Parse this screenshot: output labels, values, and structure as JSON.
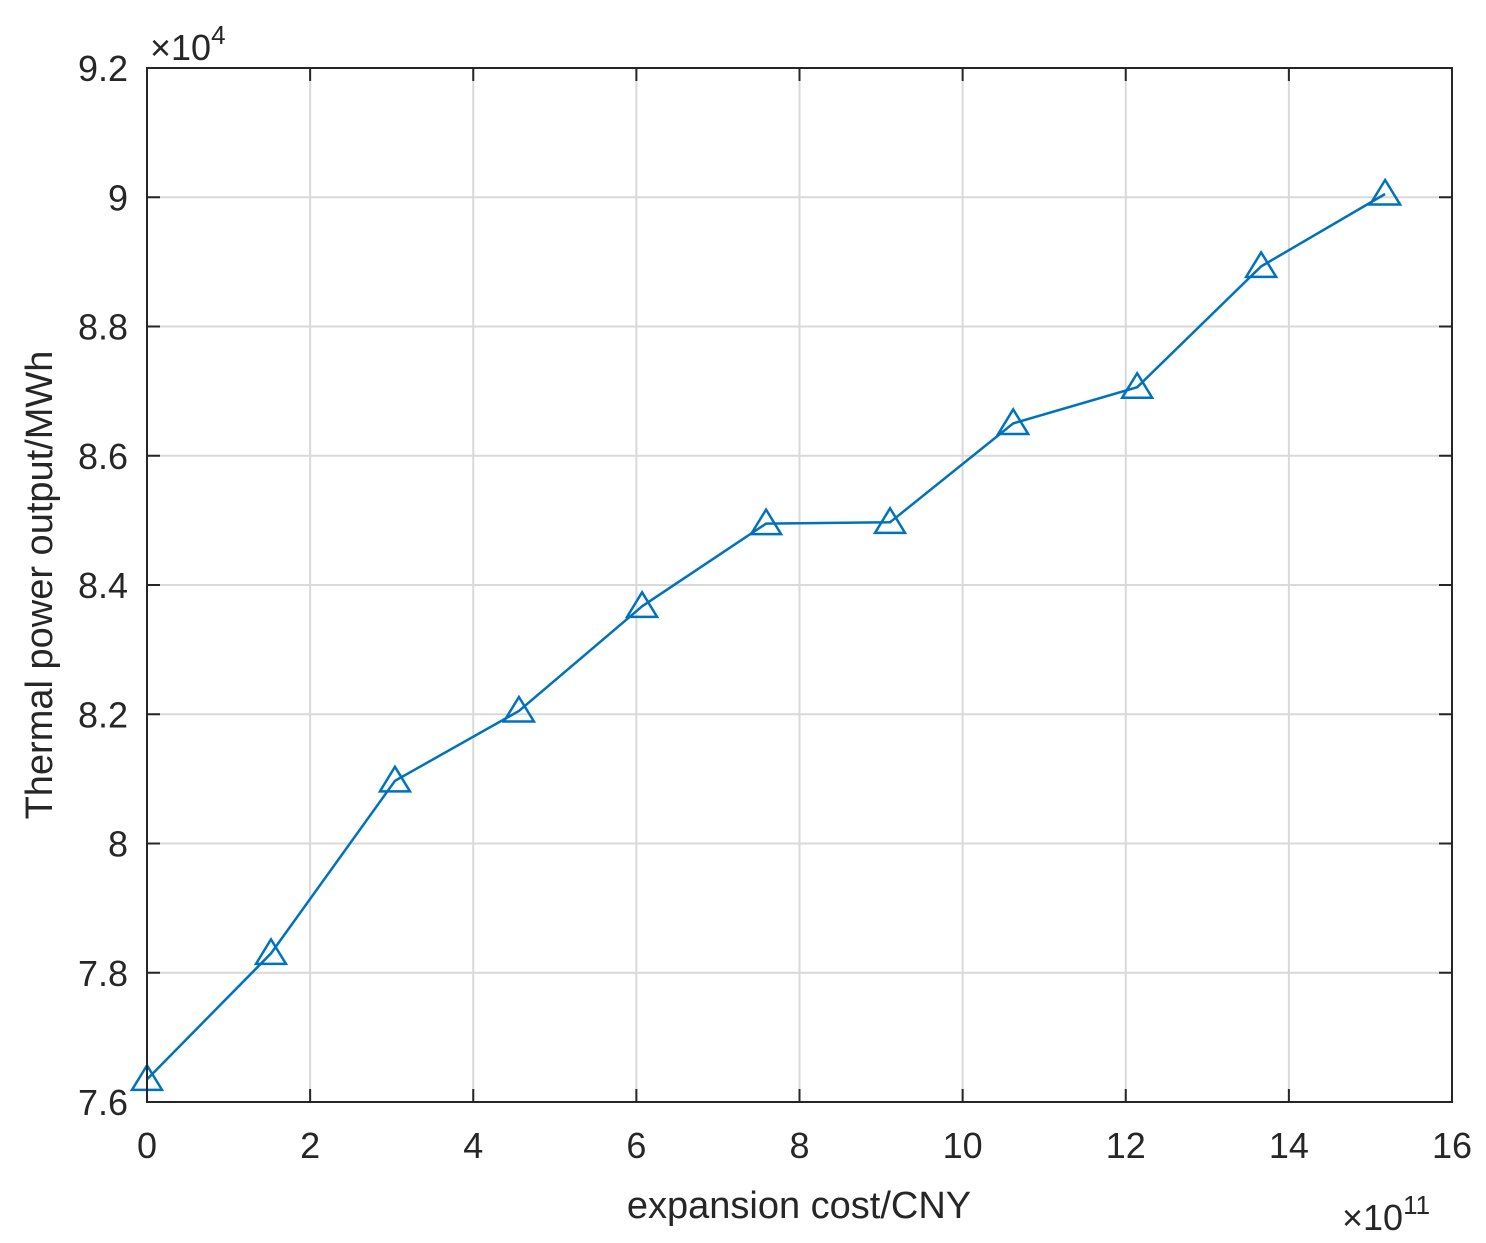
{
  "chart_data": {
    "type": "line",
    "xlabel": "expansion cost/CNY",
    "ylabel": "Thermal power output/MWh",
    "x_multiplier": {
      "prefix": "×10",
      "exponent": "11"
    },
    "y_multiplier": {
      "prefix": "×10",
      "exponent": "4"
    },
    "xlim": [
      0,
      16
    ],
    "ylim": [
      7.6,
      9.2
    ],
    "x_ticks": [
      0,
      2,
      4,
      6,
      8,
      10,
      12,
      14,
      16
    ],
    "y_ticks": [
      7.6,
      7.8,
      8,
      8.2,
      8.4,
      8.6,
      8.8,
      9,
      9.2
    ],
    "x_tick_labels": [
      "0",
      "2",
      "4",
      "6",
      "8",
      "10",
      "12",
      "14",
      "16"
    ],
    "y_tick_labels": [
      "7.6",
      "7.8",
      "8",
      "8.2",
      "8.4",
      "8.6",
      "8.8",
      "9",
      "9.2"
    ],
    "grid": true,
    "series": [
      {
        "color": "#0072BD",
        "marker": "triangle",
        "x": [
          0,
          1.52,
          3.04,
          4.56,
          6.07,
          7.59,
          9.11,
          10.62,
          12.14,
          13.66,
          15.18
        ],
        "y": [
          7.635,
          7.83,
          8.097,
          8.205,
          8.367,
          8.495,
          8.497,
          8.65,
          8.706,
          8.893,
          9.005
        ]
      }
    ]
  }
}
